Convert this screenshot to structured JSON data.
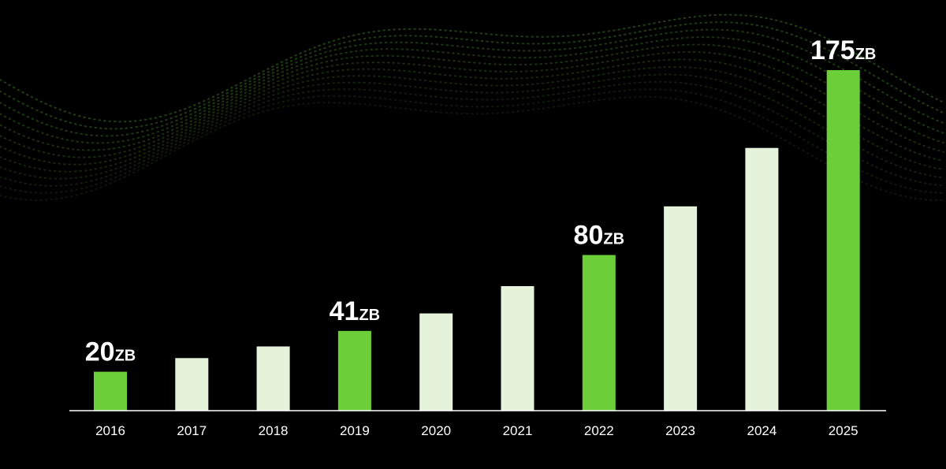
{
  "chart_data": {
    "type": "bar",
    "categories": [
      "2016",
      "2017",
      "2018",
      "2019",
      "2020",
      "2021",
      "2022",
      "2023",
      "2024",
      "2025"
    ],
    "values": [
      20,
      27,
      33,
      41,
      50,
      64,
      80,
      105,
      135,
      175
    ],
    "data_labels": [
      {
        "category": "2016",
        "number": "20",
        "unit": "ZB"
      },
      {
        "category": "2019",
        "number": "41",
        "unit": "ZB"
      },
      {
        "category": "2022",
        "number": "80",
        "unit": "ZB"
      },
      {
        "category": "2025",
        "number": "175",
        "unit": "ZB"
      }
    ],
    "highlighted": [
      "2016",
      "2019",
      "2022",
      "2025"
    ],
    "ylim": [
      0,
      175
    ],
    "grid": false,
    "legend": "none",
    "title": "",
    "xlabel": "",
    "ylabel": ""
  },
  "colors": {
    "background": "#000000",
    "highlight_bar": "#6ccf3a",
    "regular_bar": "#e4f3d9",
    "axis": "#ffffff",
    "tick_label": "#ffffff",
    "data_label": "#ffffff",
    "decoration": "#5fb83a"
  }
}
